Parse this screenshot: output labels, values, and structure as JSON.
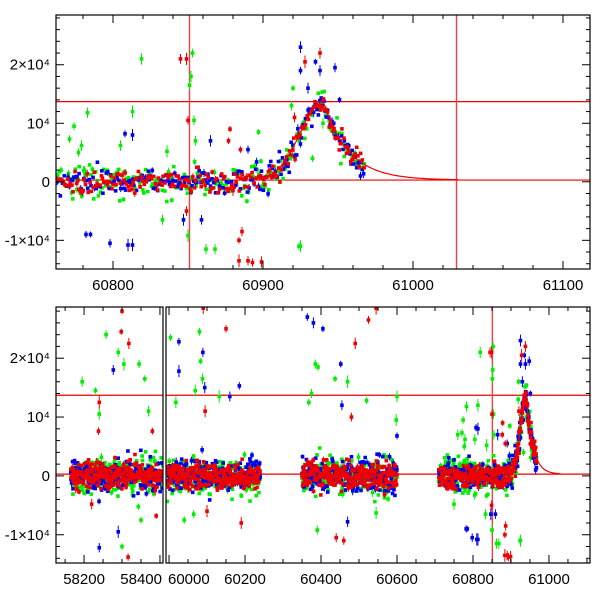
{
  "chart_data": [
    {
      "type": "scatter",
      "panel": "top",
      "title": "",
      "xlabel": "",
      "ylabel": "",
      "xlim": [
        60762,
        61118
      ],
      "ylim": [
        -14900,
        28500
      ],
      "x_ticks": [
        60800,
        60900,
        61000,
        61100
      ],
      "x_tick_labels": [
        "60800",
        "60900",
        "61000",
        "61100"
      ],
      "y_ticks": [
        -10000,
        0,
        10000,
        20000
      ],
      "y_tick_labels": [
        "-1×10⁴",
        "0",
        "10⁴",
        "2×10⁴"
      ],
      "ref_lines": {
        "horizontal": [
          13700,
          300
        ],
        "vertical": [
          60851,
          61029
        ]
      }
    },
    {
      "type": "scatter",
      "panel": "bottom",
      "title": "",
      "xlabel": "",
      "ylabel": "",
      "broken_x_axis": [
        [
          58126,
          58408
        ],
        [
          59955,
          61115
        ]
      ],
      "ylim": [
        -14800,
        28700
      ],
      "x_ticks": [
        58200,
        58400,
        60000,
        60200,
        60400,
        60600,
        60800,
        61000
      ],
      "x_tick_labels": [
        "58200",
        "58400",
        "60000",
        "60200",
        "60400",
        "60600",
        "60800",
        "61000"
      ],
      "y_ticks": [
        -10000,
        0,
        10000,
        20000
      ],
      "y_tick_labels": [
        "-1×10⁴",
        "0",
        "10⁴",
        "2×10⁴"
      ],
      "ref_lines": {
        "horizontal": [
          13700,
          300
        ],
        "vertical": [
          60851
        ]
      }
    }
  ],
  "series": [
    {
      "name": "green",
      "color": "#00ee00",
      "noise": 1500
    },
    {
      "name": "blue",
      "color": "#0000ee",
      "noise": 1300
    },
    {
      "name": "red",
      "color": "#ee0000",
      "noise": 1100
    }
  ],
  "seasons": [
    [
      58165,
      58410
    ],
    [
      59995,
      60240
    ],
    [
      60350,
      60600
    ],
    [
      60710,
      60968
    ]
  ],
  "model": {
    "peak_mjd": 60940,
    "peak_flux": 13500,
    "rise_sigma_days": 15,
    "decay_days": 17,
    "baseline": 300,
    "curve_end": 61030,
    "color": "#ee0000"
  },
  "outliers": {
    "green": [
      [
        60771,
        7300
      ],
      [
        60774,
        9500
      ],
      [
        60777,
        5000
      ],
      [
        60779,
        6200
      ],
      [
        60781,
        2000
      ],
      [
        60805,
        6200
      ],
      [
        60819,
        21000
      ],
      [
        60813,
        12000
      ],
      [
        60833,
        -6500
      ],
      [
        60836,
        5200
      ],
      [
        60850,
        -9200
      ],
      [
        60851,
        16500
      ],
      [
        60852,
        18000
      ],
      [
        60853,
        22000
      ],
      [
        60854,
        10500
      ],
      [
        60855,
        7000
      ],
      [
        60862,
        -11500
      ],
      [
        60924,
        -11000
      ],
      [
        60920,
        16000
      ],
      [
        60919,
        13000
      ],
      [
        60933,
        4000
      ],
      [
        60940,
        10000
      ],
      [
        60945,
        9000
      ],
      [
        60963,
        3000
      ],
      [
        60897,
        8500
      ],
      [
        58195,
        16000
      ],
      [
        58230,
        14500
      ],
      [
        58240,
        10500
      ],
      [
        58258,
        24000
      ],
      [
        58290,
        21000
      ],
      [
        58305,
        19000
      ],
      [
        58345,
        19000
      ],
      [
        58360,
        16500
      ],
      [
        58370,
        11000
      ],
      [
        58350,
        -7500
      ],
      [
        58300,
        -12000
      ],
      [
        60004,
        23500
      ],
      [
        60018,
        12500
      ],
      [
        60080,
        24500
      ],
      [
        60083,
        19500
      ],
      [
        60088,
        16500
      ],
      [
        60069,
        14500
      ],
      [
        60132,
        13500
      ],
      [
        60065,
        -6500
      ],
      [
        60040,
        -7500
      ],
      [
        60368,
        12500
      ],
      [
        60375,
        14000
      ],
      [
        60385,
        19000
      ],
      [
        60392,
        18500
      ],
      [
        60390,
        -9200
      ],
      [
        60437,
        16500
      ],
      [
        60470,
        16000
      ],
      [
        60520,
        12800
      ],
      [
        60600,
        13500
      ],
      [
        60598,
        9500
      ],
      [
        60545,
        -6300
      ],
      [
        60760,
        7000
      ],
      [
        60783,
        11800
      ],
      [
        60750,
        -4800
      ],
      [
        60868,
        -11500
      ],
      [
        60925,
        -11000
      ]
    ],
    "blue": [
      [
        60782,
        -9000
      ],
      [
        60798,
        -10500
      ],
      [
        60813,
        -10800
      ],
      [
        60813,
        8000
      ],
      [
        60925,
        23000
      ],
      [
        60925,
        19000
      ],
      [
        60930,
        16000
      ],
      [
        60935,
        20500
      ],
      [
        60938,
        19000
      ],
      [
        60948,
        19500
      ],
      [
        60951,
        14000
      ],
      [
        60890,
        5500
      ],
      [
        60865,
        7000
      ],
      [
        60859,
        -6500
      ],
      [
        60965,
        1000
      ],
      [
        58277,
        18000
      ],
      [
        58240,
        -12200
      ],
      [
        58290,
        -9500
      ],
      [
        60026,
        22800
      ],
      [
        60026,
        17800
      ],
      [
        60089,
        21000
      ],
      [
        60094,
        15000
      ],
      [
        60185,
        15300
      ],
      [
        60160,
        13500
      ],
      [
        60364,
        27000
      ],
      [
        60380,
        26000
      ],
      [
        60405,
        25000
      ],
      [
        60452,
        19000
      ],
      [
        60455,
        12000
      ],
      [
        60600,
        6800
      ],
      [
        60470,
        -7800
      ],
      [
        60808,
        8200
      ],
      [
        60785,
        -9000
      ],
      [
        60810,
        -10800
      ],
      [
        60847,
        -6500
      ]
    ],
    "red": [
      [
        60849,
        21000
      ],
      [
        60849,
        -5000
      ],
      [
        60884,
        -10000
      ],
      [
        60886,
        -8500
      ],
      [
        60884,
        -13500
      ],
      [
        60899,
        -13700
      ],
      [
        60938,
        22000
      ],
      [
        60928,
        20500
      ],
      [
        60878,
        9000
      ],
      [
        60877,
        7000
      ],
      [
        60885,
        5500
      ],
      [
        60880,
        -1500
      ],
      [
        60921,
        11000
      ],
      [
        58300,
        28000
      ],
      [
        58298,
        24500
      ],
      [
        58318,
        22500
      ],
      [
        58240,
        12500
      ],
      [
        58238,
        7600
      ],
      [
        58380,
        7600
      ],
      [
        58390,
        -6800
      ],
      [
        58220,
        -4800
      ],
      [
        58316,
        -13800
      ],
      [
        60090,
        28500
      ],
      [
        60150,
        25000
      ],
      [
        60095,
        11000
      ],
      [
        60100,
        -6000
      ],
      [
        60190,
        -8000
      ],
      [
        60525,
        26500
      ],
      [
        60545,
        28500
      ],
      [
        60490,
        22500
      ],
      [
        60480,
        10000
      ],
      [
        60440,
        -10500
      ],
      [
        60460,
        -11000
      ],
      [
        60845,
        21000
      ],
      [
        60850,
        10500
      ],
      [
        60890,
        -13500
      ],
      [
        60893,
        -13800
      ]
    ]
  }
}
